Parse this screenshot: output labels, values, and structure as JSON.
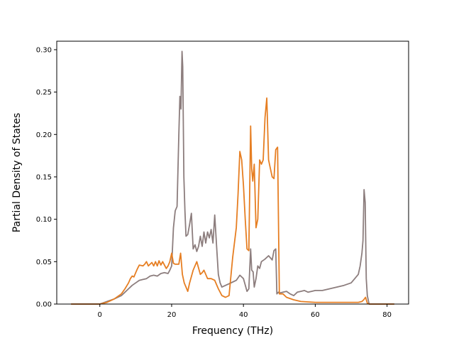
{
  "chart_data": {
    "type": "line",
    "title": "",
    "xlabel": "Frequency (THz)",
    "ylabel": "Partial Density of States",
    "xlim": [
      -12,
      86
    ],
    "ylim": [
      0,
      0.31
    ],
    "xticks": [
      0,
      20,
      40,
      60,
      80
    ],
    "yticks": [
      0.0,
      0.05,
      0.1,
      0.15,
      0.2,
      0.25,
      0.3
    ],
    "xtick_labels": [
      "0",
      "20",
      "40",
      "60",
      "80"
    ],
    "ytick_labels": [
      "0.00",
      "0.05",
      "0.10",
      "0.15",
      "0.20",
      "0.25",
      "0.30"
    ],
    "grid": false,
    "legend": "none",
    "series": [
      {
        "color": "#8c7d7d",
        "x": [
          -8,
          0,
          2,
          4,
          6,
          7,
          8,
          9,
          10,
          11,
          12,
          13,
          14,
          15,
          16,
          17,
          18,
          19,
          19.5,
          20,
          20.5,
          21,
          21.5,
          22,
          22.3,
          22.6,
          22.9,
          23.1,
          23.4,
          23.7,
          24,
          24.5,
          25,
          25.5,
          26,
          26.5,
          27,
          27.5,
          28,
          28.5,
          29,
          29.5,
          30,
          30.5,
          31,
          31.5,
          32,
          32.5,
          33,
          33.5,
          34,
          35,
          36,
          37,
          38,
          39,
          40,
          41,
          41.5,
          42,
          42.3,
          42.7,
          43,
          43.5,
          44,
          44.5,
          45,
          46,
          47,
          48,
          48.5,
          49,
          49.3,
          49.7,
          50,
          51,
          52,
          53,
          54,
          55,
          56,
          57,
          58,
          59,
          60,
          62,
          64,
          66,
          68,
          70,
          71,
          72,
          72.5,
          73,
          73.3,
          73.6,
          73.9,
          74.2,
          74.5,
          75,
          76,
          80,
          82
        ],
        "y": [
          0,
          0,
          0.003,
          0.006,
          0.01,
          0.014,
          0.018,
          0.022,
          0.025,
          0.028,
          0.029,
          0.03,
          0.033,
          0.034,
          0.033,
          0.036,
          0.037,
          0.036,
          0.04,
          0.045,
          0.09,
          0.11,
          0.115,
          0.2,
          0.245,
          0.23,
          0.298,
          0.28,
          0.15,
          0.11,
          0.08,
          0.082,
          0.094,
          0.107,
          0.065,
          0.07,
          0.062,
          0.068,
          0.08,
          0.068,
          0.085,
          0.072,
          0.085,
          0.078,
          0.088,
          0.072,
          0.105,
          0.07,
          0.035,
          0.025,
          0.02,
          0.022,
          0.024,
          0.026,
          0.028,
          0.034,
          0.03,
          0.015,
          0.018,
          0.065,
          0.04,
          0.038,
          0.02,
          0.03,
          0.045,
          0.042,
          0.05,
          0.053,
          0.057,
          0.052,
          0.063,
          0.065,
          0.012,
          0.014,
          0.013,
          0.014,
          0.015,
          0.012,
          0.01,
          0.014,
          0.015,
          0.016,
          0.014,
          0.015,
          0.016,
          0.016,
          0.018,
          0.02,
          0.022,
          0.025,
          0.03,
          0.035,
          0.045,
          0.06,
          0.075,
          0.135,
          0.12,
          0.03,
          0.01,
          0,
          0,
          0,
          0
        ]
      },
      {
        "color": "#e67e22",
        "x": [
          -8,
          0,
          2,
          4,
          6,
          7,
          8,
          8.5,
          9,
          9.5,
          10,
          10.5,
          11,
          12,
          12.5,
          13,
          13.5,
          14,
          14.5,
          15,
          15.5,
          16,
          16.5,
          17,
          17.5,
          18,
          18.5,
          19,
          19.5,
          20,
          20.5,
          21,
          22,
          22.5,
          23,
          23.5,
          24,
          24.5,
          25,
          26,
          27,
          28,
          28.5,
          29,
          30,
          31,
          32,
          33,
          34,
          35,
          36,
          37,
          38,
          38.5,
          39,
          39.5,
          40,
          40.5,
          41,
          41.5,
          42,
          42.3,
          42.6,
          43,
          43.5,
          44,
          44.5,
          45,
          45.5,
          46,
          46.5,
          47,
          47.5,
          48,
          48.5,
          49,
          49.5,
          50,
          51,
          52,
          54,
          56,
          60,
          65,
          70,
          72,
          73,
          73.5,
          74,
          74.5,
          75,
          80,
          82
        ],
        "y": [
          0,
          0,
          0.002,
          0.006,
          0.012,
          0.018,
          0.025,
          0.03,
          0.033,
          0.032,
          0.037,
          0.042,
          0.046,
          0.045,
          0.047,
          0.05,
          0.045,
          0.047,
          0.049,
          0.045,
          0.05,
          0.045,
          0.051,
          0.046,
          0.05,
          0.046,
          0.042,
          0.045,
          0.05,
          0.06,
          0.048,
          0.047,
          0.047,
          0.06,
          0.035,
          0.025,
          0.02,
          0.015,
          0.025,
          0.04,
          0.05,
          0.035,
          0.037,
          0.04,
          0.03,
          0.03,
          0.028,
          0.018,
          0.01,
          0.008,
          0.01,
          0.055,
          0.09,
          0.13,
          0.18,
          0.17,
          0.14,
          0.1,
          0.065,
          0.063,
          0.21,
          0.16,
          0.145,
          0.165,
          0.09,
          0.1,
          0.17,
          0.165,
          0.17,
          0.22,
          0.243,
          0.17,
          0.16,
          0.15,
          0.148,
          0.182,
          0.185,
          0.012,
          0.012,
          0.008,
          0.005,
          0.003,
          0.002,
          0.002,
          0.002,
          0.002,
          0.003,
          0.005,
          0.008,
          0.001,
          0,
          0,
          0
        ]
      }
    ]
  }
}
